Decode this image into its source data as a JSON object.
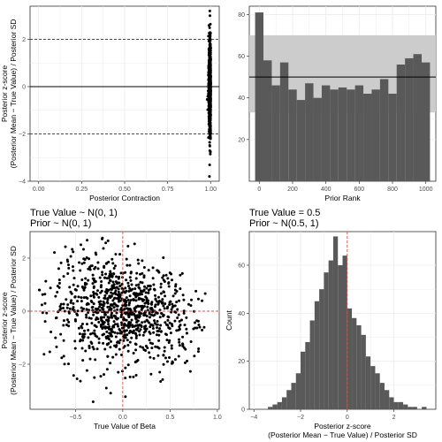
{
  "chart_data": [
    {
      "type": "scatter",
      "xlabel": "Posterior Contraction",
      "ylabel": "Posterior z-score",
      "ylabel2": "(Posterior Mean − True Value) / Posterior SD",
      "xlim": [
        -0.05,
        1.05
      ],
      "ylim": [
        -4,
        3.4
      ],
      "xticks": [
        "0.00",
        "0.25",
        "0.50",
        "0.75",
        "1.00"
      ],
      "xtick_values": [
        0,
        0.25,
        0.5,
        0.75,
        1.0
      ],
      "yticks": [
        "−4",
        "−2",
        "0",
        "2"
      ],
      "ytick_values": [
        -4,
        -2,
        0,
        2
      ],
      "hlines_dashed": [
        -2,
        2
      ],
      "hline_solid": 0,
      "points": {
        "x_center": 1.0,
        "x_spread": 0.005,
        "y_min": -3.8,
        "y_max": 3.2,
        "n": 1000
      },
      "grid": true
    },
    {
      "type": "bar",
      "xlabel": "Prior Rank",
      "ylabel": "",
      "xlim": [
        -60,
        1060
      ],
      "ylim": [
        0,
        84
      ],
      "xticks": [
        "0",
        "200",
        "400",
        "600",
        "800",
        "1000"
      ],
      "xtick_values": [
        0,
        200,
        400,
        600,
        800,
        1000
      ],
      "yticks": [
        "20",
        "40",
        "60",
        "80"
      ],
      "ytick_values": [
        20,
        40,
        60,
        80
      ],
      "bin_width": 50,
      "bin_starts": [
        -25,
        25,
        75,
        125,
        175,
        225,
        275,
        325,
        375,
        425,
        475,
        525,
        575,
        625,
        675,
        725,
        775,
        825,
        875,
        925,
        975
      ],
      "values": [
        81,
        58,
        46,
        57,
        44,
        39,
        47,
        40,
        46,
        44,
        45,
        44,
        46,
        42,
        44,
        49,
        42,
        56,
        59,
        61,
        57
      ],
      "band": [
        33,
        70
      ],
      "hline": 50,
      "grid": true
    },
    {
      "type": "scatter",
      "title": "True Value ~ N(0, 1)",
      "subtitle": "Prior ~ N(0, 1)",
      "xlabel": "True Value of Beta",
      "ylabel": "Posterior z-score",
      "ylabel2": "(Posterior Mean − True Value) / Posterior SD",
      "xlim": [
        -0.98,
        1.02
      ],
      "ylim": [
        -3.7,
        3.0
      ],
      "xticks": [
        "−0.5",
        "0.0",
        "0.5",
        "1.0"
      ],
      "xtick_values": [
        -0.5,
        0,
        0.5,
        1.0
      ],
      "yticks": [
        "2",
        "0",
        "−2"
      ],
      "ytick_values": [
        2,
        0,
        -2
      ],
      "vline_dashed": 0,
      "hline_dashed": 0,
      "points": {
        "n": 1000,
        "x_range": [
          -0.9,
          0.9
        ],
        "slope": -1.4,
        "noise_sd": 0.95
      },
      "grid": true
    },
    {
      "type": "bar",
      "title": "True Value = 0.5",
      "subtitle": "Prior ~ N(0.5, 1)",
      "xlabel": "Posterior z-score",
      "xlabel2": "(Posterior Mean − True Value) / Posterior SD",
      "ylabel": "Count",
      "xlim": [
        -4.2,
        3.8
      ],
      "ylim": [
        0,
        74
      ],
      "xticks": [
        "−4",
        "−2",
        "0",
        "2"
      ],
      "xtick_values": [
        -4,
        -2,
        0,
        2
      ],
      "yticks": [
        "0",
        "20",
        "40",
        "60"
      ],
      "ytick_values": [
        0,
        20,
        40,
        60
      ],
      "bin_width": 0.2,
      "bin_starts": [
        -3.4,
        -3.2,
        -3.0,
        -2.8,
        -2.6,
        -2.4,
        -2.2,
        -2.0,
        -1.8,
        -1.6,
        -1.4,
        -1.2,
        -1.0,
        -0.8,
        -0.6,
        -0.4,
        -0.2,
        0.0,
        0.2,
        0.4,
        0.6,
        0.8,
        1.0,
        1.2,
        1.4,
        1.6,
        1.8,
        2.0,
        2.2,
        2.4,
        2.6,
        2.8,
        3.0,
        3.2,
        3.4
      ],
      "values": [
        1,
        2,
        3,
        5,
        8,
        11,
        15,
        24,
        28,
        37,
        45,
        50,
        57,
        62,
        72,
        60,
        64,
        42,
        38,
        35,
        31,
        22,
        18,
        15,
        11,
        8,
        5,
        3,
        3,
        2,
        1,
        1,
        0,
        1,
        0
      ],
      "vline_dashed": 0,
      "grid": true
    }
  ]
}
